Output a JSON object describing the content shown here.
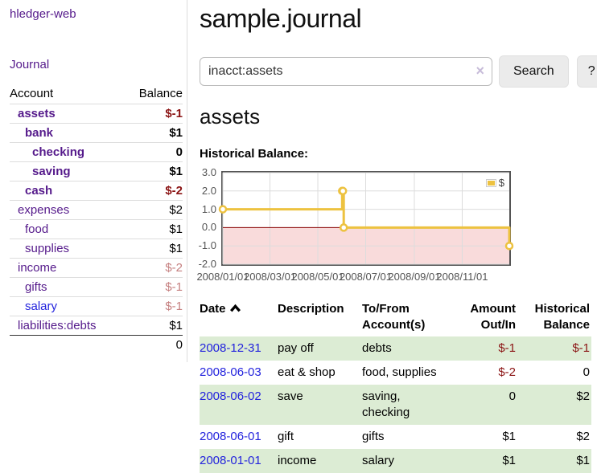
{
  "app": {
    "brand": "hledger-web",
    "nav": {
      "journal": "Journal"
    }
  },
  "sidebar": {
    "accounts_table": {
      "headers": {
        "account": "Account",
        "balance": "Balance"
      },
      "rows": [
        {
          "name": "assets",
          "balance": "$-1"
        },
        {
          "name": "bank",
          "balance": "$1"
        },
        {
          "name": "checking",
          "balance": "0"
        },
        {
          "name": "saving",
          "balance": "$1"
        },
        {
          "name": "cash",
          "balance": "$-2"
        },
        {
          "name": "expenses",
          "balance": "$2"
        },
        {
          "name": "food",
          "balance": "$1"
        },
        {
          "name": "supplies",
          "balance": "$1"
        },
        {
          "name": "income",
          "balance": "$-2"
        },
        {
          "name": "gifts",
          "balance": "$-1"
        },
        {
          "name": "salary",
          "balance": "$-1"
        },
        {
          "name": "liabilities:debts",
          "balance": "$1"
        }
      ],
      "total": "0"
    }
  },
  "main": {
    "title": "sample.journal",
    "search": {
      "value": "inacct:assets",
      "clear_icon": "×",
      "search_button": "Search",
      "help_button": "?"
    },
    "heading": "assets",
    "chart_title": "Historical Balance:"
  },
  "chart_data": {
    "type": "line",
    "steps": true,
    "title": "Historical Balance",
    "series": [
      {
        "name": "$",
        "color": "#edc240",
        "points": [
          [
            "2008-01-01",
            1
          ],
          [
            "2008-06-01",
            2
          ],
          [
            "2008-06-02",
            2
          ],
          [
            "2008-06-03",
            0
          ],
          [
            "2008-12-31",
            -1
          ]
        ]
      }
    ],
    "x_range": [
      "2008-01-01",
      "2008-12-31"
    ],
    "ylim": [
      -2,
      3
    ],
    "y_ticks": [
      {
        "value": 3,
        "label": "3.0"
      },
      {
        "value": 2,
        "label": "2.0"
      },
      {
        "value": 1,
        "label": "1.0"
      },
      {
        "value": 0,
        "label": "0.0"
      },
      {
        "value": -1,
        "label": "-1.0"
      },
      {
        "value": -2,
        "label": "-2.0"
      }
    ],
    "x_ticks": [
      {
        "date": "2008-01-01",
        "label": "2008/01/01"
      },
      {
        "date": "2008-03-01",
        "label": "2008/03/01"
      },
      {
        "date": "2008-05-01",
        "label": "2008/05/01"
      },
      {
        "date": "2008-07-01",
        "label": "2008/07/01"
      },
      {
        "date": "2008-09-01",
        "label": "2008/09/01"
      },
      {
        "date": "2008-11-01",
        "label": "2008/11/01"
      }
    ],
    "legend": {
      "label": "$",
      "position": "top-right"
    },
    "colors": {
      "line": "#edc240",
      "negative_region": "#f9dbdb",
      "zero_line": "#8b0000",
      "grid": "#dcdcdc",
      "border": "#545454"
    },
    "grid": true
  },
  "transactions": {
    "headers": {
      "date": "Date",
      "description": "Description",
      "accounts": "To/From Account(s)",
      "amount": "Amount Out/In",
      "balance": "Historical Balance"
    },
    "rows": [
      {
        "date": "2008-12-31",
        "description": "pay off",
        "accounts": "debts",
        "amount": "$-1",
        "balance": "$-1"
      },
      {
        "date": "2008-06-03",
        "description": "eat & shop",
        "accounts": "food, supplies",
        "amount": "$-2",
        "balance": "0"
      },
      {
        "date": "2008-06-02",
        "description": "save",
        "accounts": "saving, checking",
        "amount": "0",
        "balance": "$2"
      },
      {
        "date": "2008-06-01",
        "description": "gift",
        "accounts": "gifts",
        "amount": "$1",
        "balance": "$2"
      },
      {
        "date": "2008-01-01",
        "description": "income",
        "accounts": "salary",
        "amount": "$1",
        "balance": "$1"
      }
    ]
  }
}
